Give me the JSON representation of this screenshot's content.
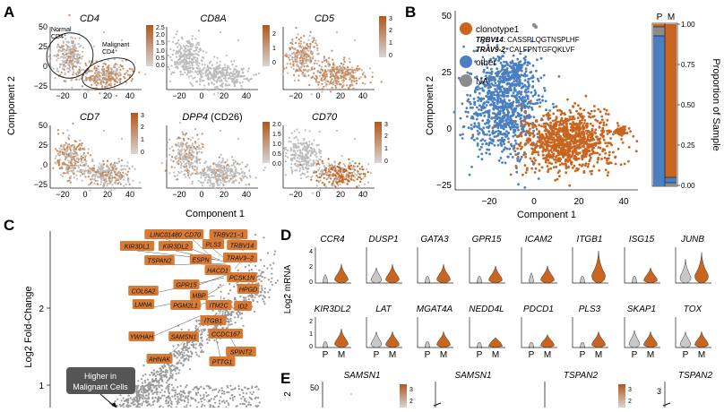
{
  "panel_letters": {
    "a": "A",
    "b": "B",
    "c": "C",
    "d": "D",
    "e": "E"
  },
  "panel_a": {
    "axis_y": "Component 2",
    "axis_x": "Component 1",
    "ann_normal": [
      "Normal",
      "CD4⁺"
    ],
    "ann_malig": [
      "Malignant",
      "CD4⁺"
    ],
    "plots": [
      {
        "gene": "CD4",
        "extra": "",
        "scale": [
          "2.5",
          "2.0",
          "1.5",
          "1.0",
          "0.5",
          "0.0"
        ]
      },
      {
        "gene": "CD8A",
        "extra": "",
        "scale": [
          "2",
          "1",
          "0"
        ]
      },
      {
        "gene": "CD5",
        "extra": "",
        "scale": [
          "3",
          "2",
          "1",
          "0"
        ]
      },
      {
        "gene": "CD7",
        "extra": "",
        "scale": [
          "3",
          "2",
          "1",
          "0"
        ]
      },
      {
        "gene": "DPP4",
        "extra": " (CD26)",
        "scale": [
          "2.0",
          "1.5",
          "1.0",
          "0.5",
          "0.0"
        ]
      },
      {
        "gene": "CD70",
        "extra": "",
        "scale": [
          "3",
          "2",
          "1",
          "0"
        ]
      }
    ],
    "xticks": [
      "−20",
      "0",
      "20",
      "40"
    ],
    "yticks": [
      "50",
      "25",
      "0",
      "−25"
    ]
  },
  "panel_b": {
    "legend": [
      {
        "name": "clonotype1",
        "color": "#c9651f"
      },
      {
        "name": "other",
        "color": "#4a7fc1"
      },
      {
        "name": "NA",
        "color": "#8c8c8c"
      }
    ],
    "trbv_label": "TRBV14",
    "trbv_seq": ": CASSPLQGTNSPLHF",
    "trav_label": "TRAV9-2",
    "trav_seq": ": CALFPNTGFQKLVF",
    "xlabel": "Component 1",
    "ylabel": "Component 2",
    "xticks": [
      "−20",
      "0",
      "20",
      "40"
    ],
    "yticks": [
      "50",
      "25",
      "0",
      "−25"
    ],
    "bar_labels": [
      "P",
      "M"
    ],
    "bar_ylabel": "Proportion of Sample",
    "bar_ticks": [
      "1.00",
      "0.75",
      "0.50",
      "0.25",
      "0.00"
    ]
  },
  "panel_c": {
    "ylabel": "Log2 Fold-Change",
    "yticks": [
      "2",
      "1"
    ],
    "genes": [
      "LINC01480",
      "CD70",
      "TRBV21−1",
      "KIR3DL1",
      "KIR3DL2",
      "PLS3",
      "TRBV14",
      "TSPAN2",
      "ESPN",
      "TRAV9−2",
      "HACD1",
      "PCSK1N",
      "COL6A2",
      "GPR15",
      "MBP",
      "HPGD",
      "LMNA",
      "PGM2L1",
      "ITM2C",
      "ID2",
      "ITGB1",
      "YWHAH",
      "SAMSN1",
      "CCDC167",
      "SPINT2",
      "AHNAK",
      "PTTG1"
    ],
    "callout": [
      "Higher in",
      "Malignant Cells"
    ]
  },
  "panel_d": {
    "ylabel": "Log2 mRNA",
    "row1": [
      "CCR4",
      "DUSP1",
      "GATA3",
      "GPR15",
      "ICAM2",
      "ITGB1",
      "ISG15",
      "JUNB"
    ],
    "row2": [
      "KIR3DL2",
      "LAT",
      "MGAT4A",
      "NEDD4L",
      "PDCD1",
      "PLS3",
      "SKAP1",
      "TOX"
    ],
    "yticks1": [
      "4",
      "2",
      "0"
    ],
    "yticks2": [
      "2",
      "1",
      "0"
    ],
    "xlabels": [
      "P",
      "M"
    ]
  },
  "panel_e": {
    "titles": [
      "SAMSN1",
      "SAMSN1",
      "TSPAN2",
      "TSPAN2"
    ],
    "ytick": "50",
    "scale_left": [
      "3",
      "2"
    ],
    "scale_right": [
      "3",
      "2"
    ],
    "ytick_right": "3"
  },
  "colors": {
    "orange": "#c9651f",
    "blue": "#4a7fc1",
    "gray": "#bdbdbd",
    "darkgray": "#8c8c8c"
  }
}
